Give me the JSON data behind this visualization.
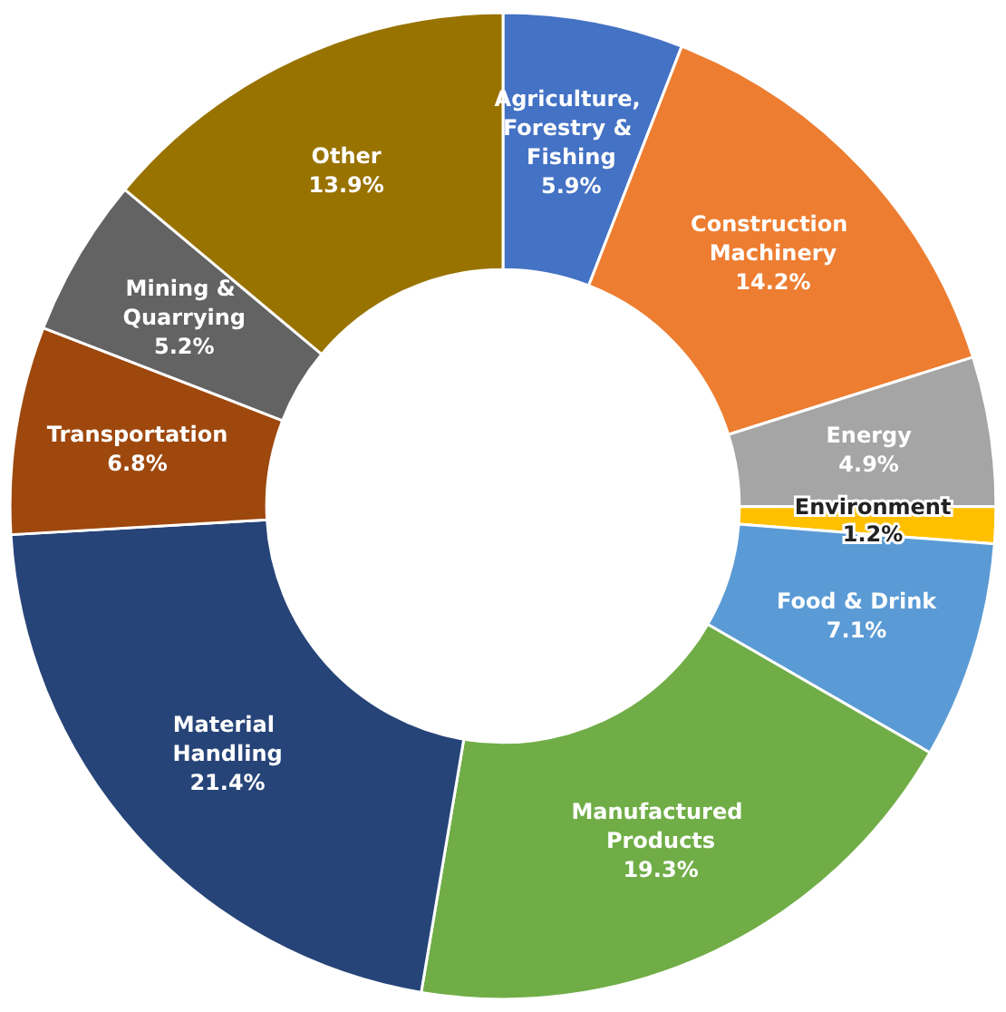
{
  "chart_data": {
    "type": "donut",
    "categories": [
      "Agriculture, Forestry & Fishing",
      "Construction Machinery",
      "Energy",
      "Environment",
      "Food & Drink",
      "Manufactured Products",
      "Material Handling",
      "Transportation",
      "Mining & Quarrying",
      "Other"
    ],
    "values": [
      5.9,
      14.2,
      4.9,
      1.2,
      7.1,
      19.3,
      21.4,
      6.8,
      5.2,
      13.9
    ],
    "colors": [
      "#4472c4",
      "#ed7d31",
      "#a5a5a5",
      "#ffc000",
      "#5b9bd5",
      "#70ad47",
      "#264478",
      "#9e480e",
      "#636363",
      "#997300"
    ],
    "value_labels": [
      "5.9%",
      "14.2%",
      "4.9%",
      "1.2%",
      "7.1%",
      "19.3%",
      "21.4%",
      "6.8%",
      "5.2%",
      "13.9%"
    ],
    "legend": false
  }
}
